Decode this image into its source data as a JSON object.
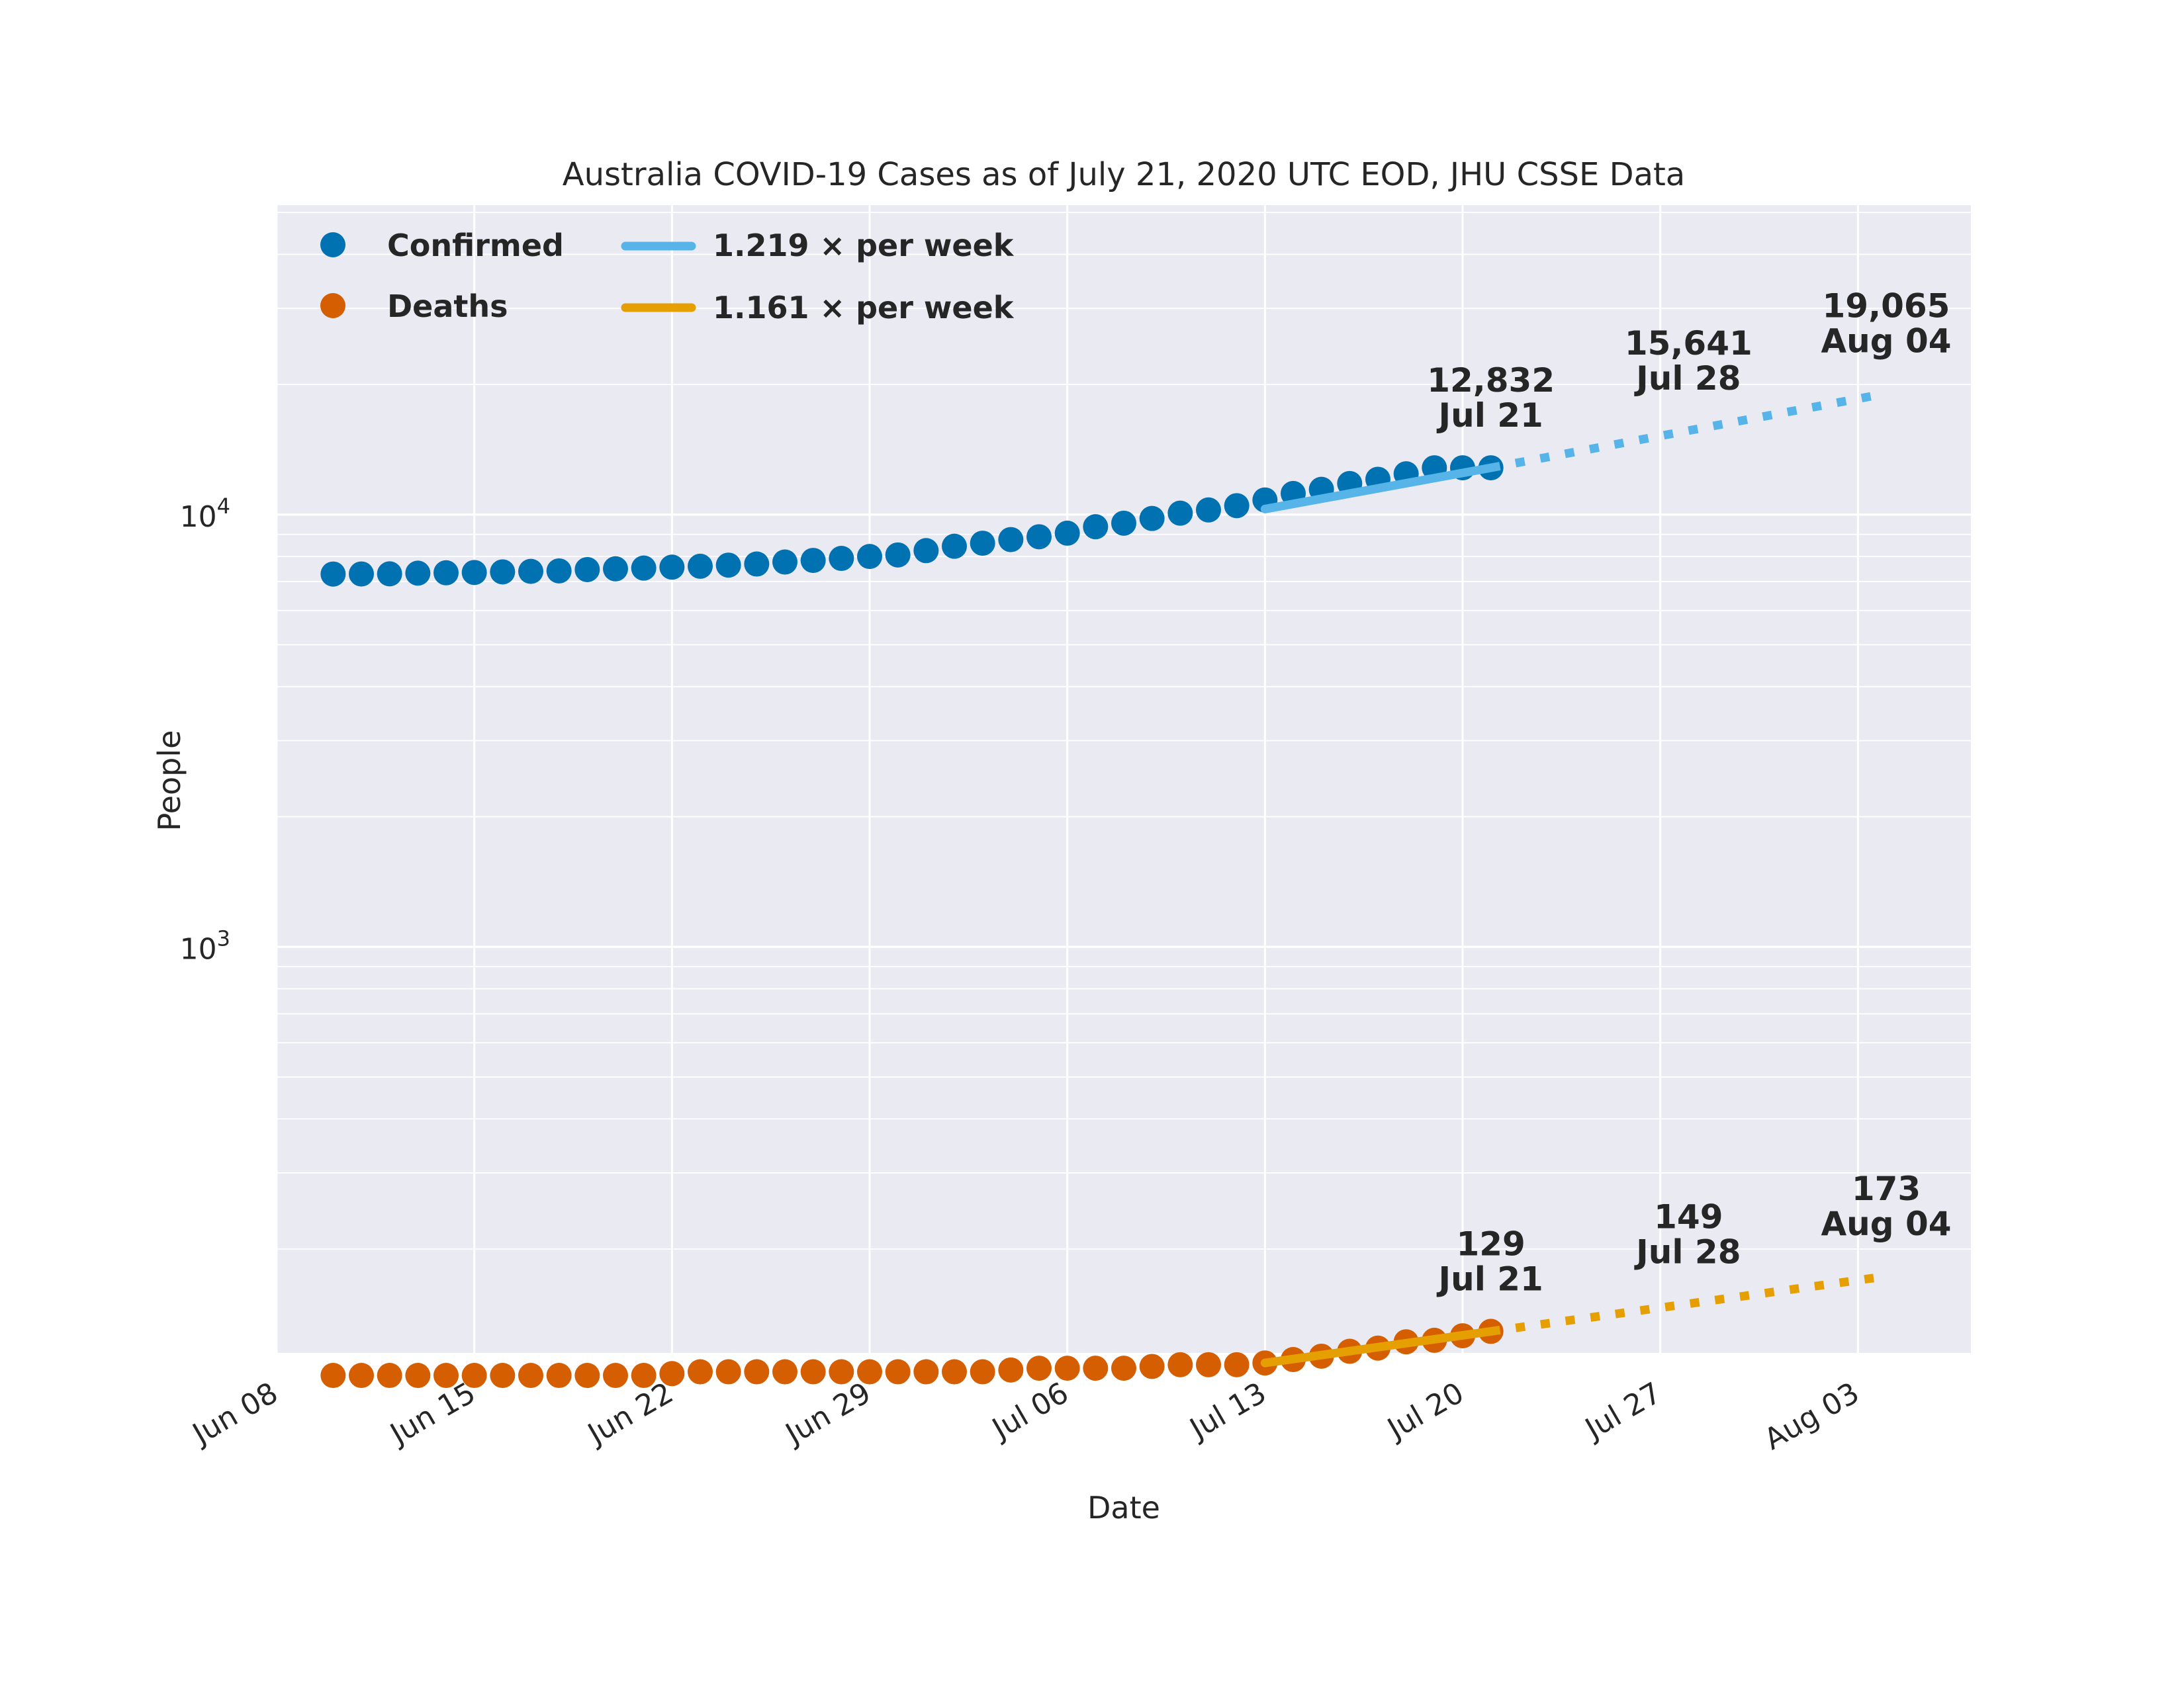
{
  "chart_data": {
    "type": "scatter",
    "title": "Australia COVID-19 Cases as of July 21, 2020 UTC EOD, JHU CSSE Data",
    "xlabel": "Date",
    "ylabel": "People",
    "y_scale": "log",
    "ylim": [
      115,
      52000
    ],
    "xlim": [
      "2020-06-08",
      "2020-08-07"
    ],
    "x_ticks": [
      {
        "date": "2020-06-08",
        "label": "Jun 08"
      },
      {
        "date": "2020-06-15",
        "label": "Jun 15"
      },
      {
        "date": "2020-06-22",
        "label": "Jun 22"
      },
      {
        "date": "2020-06-29",
        "label": "Jun 29"
      },
      {
        "date": "2020-07-06",
        "label": "Jul 06"
      },
      {
        "date": "2020-07-13",
        "label": "Jul 13"
      },
      {
        "date": "2020-07-20",
        "label": "Jul 20"
      },
      {
        "date": "2020-07-27",
        "label": "Jul 27"
      },
      {
        "date": "2020-08-03",
        "label": "Aug 03"
      }
    ],
    "y_ticks": [
      {
        "value": 10000,
        "base": "10",
        "exp": "4"
      },
      {
        "value": 1000,
        "base": "10",
        "exp": "3"
      }
    ],
    "grid": true,
    "legend_position": "top-left",
    "colors": {
      "background": "#ffffff",
      "plot_bg": "#eaeaf2",
      "grid": "#ffffff",
      "confirmed": "#0072b2",
      "deaths": "#d55e00",
      "confirmed_fit": "#56b4e9",
      "deaths_fit": "#e69f00"
    },
    "series": [
      {
        "name": "Confirmed",
        "marker": "circle",
        "dates": [
          "2020-06-10",
          "2020-06-11",
          "2020-06-12",
          "2020-06-13",
          "2020-06-14",
          "2020-06-15",
          "2020-06-16",
          "2020-06-17",
          "2020-06-18",
          "2020-06-19",
          "2020-06-20",
          "2020-06-21",
          "2020-06-22",
          "2020-06-23",
          "2020-06-24",
          "2020-06-25",
          "2020-06-26",
          "2020-06-27",
          "2020-06-28",
          "2020-06-29",
          "2020-06-30",
          "2020-07-01",
          "2020-07-02",
          "2020-07-03",
          "2020-07-04",
          "2020-07-05",
          "2020-07-06",
          "2020-07-07",
          "2020-07-08",
          "2020-07-09",
          "2020-07-10",
          "2020-07-11",
          "2020-07-12",
          "2020-07-13",
          "2020-07-14",
          "2020-07-15",
          "2020-07-16",
          "2020-07-17",
          "2020-07-18",
          "2020-07-19",
          "2020-07-20",
          "2020-07-21"
        ],
        "values": [
          7285,
          7289,
          7294,
          7320,
          7335,
          7347,
          7370,
          7391,
          7409,
          7461,
          7492,
          7521,
          7558,
          7595,
          7641,
          7686,
          7768,
          7834,
          7920,
          8001,
          8066,
          8255,
          8449,
          8586,
          8755,
          8886,
          9059,
          9374,
          9553,
          9797,
          10077,
          10251,
          10487,
          10810,
          11190,
          11441,
          11802,
          12069,
          12428,
          12832,
          12832,
          12832
        ]
      },
      {
        "name": "Deaths",
        "marker": "circle",
        "dates": [
          "2020-06-10",
          "2020-06-11",
          "2020-06-12",
          "2020-06-13",
          "2020-06-14",
          "2020-06-15",
          "2020-06-16",
          "2020-06-17",
          "2020-06-18",
          "2020-06-19",
          "2020-06-20",
          "2020-06-21",
          "2020-06-22",
          "2020-06-23",
          "2020-06-24",
          "2020-06-25",
          "2020-06-26",
          "2020-06-27",
          "2020-06-28",
          "2020-06-29",
          "2020-06-30",
          "2020-07-01",
          "2020-07-02",
          "2020-07-03",
          "2020-07-04",
          "2020-07-05",
          "2020-07-06",
          "2020-07-07",
          "2020-07-08",
          "2020-07-09",
          "2020-07-10",
          "2020-07-11",
          "2020-07-12",
          "2020-07-13",
          "2020-07-14",
          "2020-07-15",
          "2020-07-16",
          "2020-07-17",
          "2020-07-18",
          "2020-07-19",
          "2020-07-20",
          "2020-07-21"
        ],
        "values": [
          102,
          102,
          102,
          102,
          102,
          102,
          102,
          102,
          102,
          102,
          102,
          102,
          103,
          104,
          104,
          104,
          104,
          104,
          104,
          104,
          104,
          104,
          104,
          104,
          105,
          106,
          106,
          106,
          106,
          107,
          108,
          108,
          108,
          109,
          111,
          113,
          116,
          118,
          122,
          123,
          126,
          129
        ]
      },
      {
        "name": "1.219 × per week",
        "type": "line",
        "fit_dates": [
          "2020-07-13",
          "2020-07-21"
        ],
        "fit_values": [
          10300,
          12832
        ],
        "projection_dates": [
          "2020-07-21",
          "2020-08-04"
        ],
        "projection_values": [
          12832,
          19065
        ]
      },
      {
        "name": "1.161 × per week",
        "type": "line",
        "fit_dates": [
          "2020-07-13",
          "2020-07-21"
        ],
        "fit_values": [
          109,
          129
        ],
        "projection_dates": [
          "2020-07-21",
          "2020-08-04"
        ],
        "projection_values": [
          129,
          173
        ]
      }
    ],
    "annotations": [
      {
        "series": "Confirmed",
        "value": "12,832",
        "date": "2020-07-21",
        "label": "Jul 21",
        "y": 12832
      },
      {
        "series": "Confirmed",
        "value": "15,641",
        "date": "2020-07-28",
        "label": "Jul 28",
        "y": 15641
      },
      {
        "series": "Confirmed",
        "value": "19,065",
        "date": "2020-08-04",
        "label": "Aug 04",
        "y": 19065
      },
      {
        "series": "Deaths",
        "value": "129",
        "date": "2020-07-21",
        "label": "Jul 21",
        "y": 129
      },
      {
        "series": "Deaths",
        "value": "149",
        "date": "2020-07-28",
        "label": "Jul 28",
        "y": 149
      },
      {
        "series": "Deaths",
        "value": "173",
        "date": "2020-08-04",
        "label": "Aug 04",
        "y": 173
      }
    ]
  }
}
